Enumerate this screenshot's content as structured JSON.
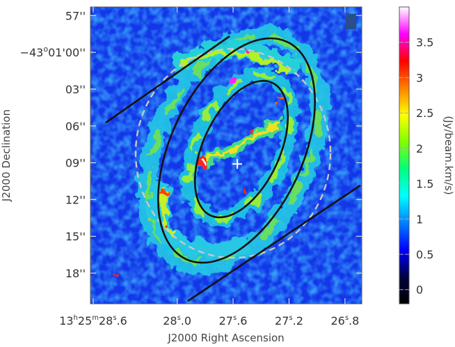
{
  "figure": {
    "x_axis_title": "J2000 Right Ascension",
    "y_axis_title": "J2000 Declination",
    "colorbar_unit": "(Jy/beam.km/s)"
  },
  "ra_ticks": [
    {
      "h": "13",
      "m": "25",
      "s": "28",
      "f": "6",
      "ra_sec": 28.6
    },
    {
      "s": "28",
      "f": "0",
      "ra_sec": 28.0
    },
    {
      "s": "27",
      "f": "6",
      "ra_sec": 27.6
    },
    {
      "s": "27",
      "f": "2",
      "ra_sec": 27.2
    },
    {
      "s": "26",
      "f": "8",
      "ra_sec": 26.8
    }
  ],
  "ra_range_sec": [
    28.62,
    26.68
  ],
  "dec_ticks": [
    {
      "label": "57''",
      "offset": 0
    },
    {
      "label": "-43°01'00''",
      "deg": "-43",
      "min": "01",
      "sec": "00''",
      "offset": 3
    },
    {
      "label": "03''",
      "offset": 6
    },
    {
      "label": "06''",
      "offset": 9
    },
    {
      "label": "09''",
      "offset": 12
    },
    {
      "label": "12''",
      "offset": 15
    },
    {
      "label": "15''",
      "offset": 18
    },
    {
      "label": "18''",
      "offset": 21
    }
  ],
  "dec_offset_range": [
    -0.7,
    23.5
  ],
  "colorbar": {
    "ticks": [
      "0",
      "0.5",
      "1",
      "1.5",
      "2",
      "2.5",
      "3",
      "3.5"
    ],
    "tick_values": [
      0,
      0.5,
      1,
      1.5,
      2,
      2.5,
      3,
      3.5
    ],
    "range": [
      -0.2,
      4.0
    ],
    "colormap": [
      "#000000",
      "#000040",
      "#0000ff",
      "#0080ff",
      "#00ffff",
      "#00ff80",
      "#80ff00",
      "#ffff00",
      "#ff8000",
      "#ff0000",
      "#ff00ff",
      "#ffffff"
    ]
  },
  "overlays": {
    "center_marker": "cross",
    "center_ra_sec": 27.57,
    "center_dec_offset": 12.1
  }
}
